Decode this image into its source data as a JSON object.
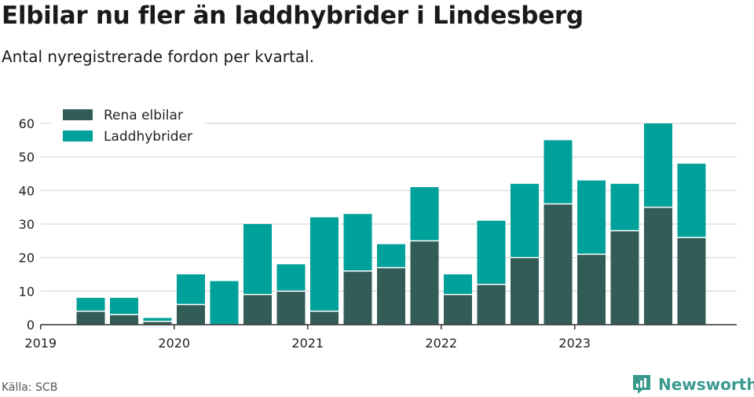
{
  "header": {
    "title": "Elbilar nu fler än laddhybrider i Lindesberg",
    "subtitle": "Antal nyregistrerade fordon per kvartal."
  },
  "footer": {
    "source": "Källa: SCB",
    "brand": "Newsworthy"
  },
  "colors": {
    "elbilar": "#335c56",
    "laddhybrider": "#00a19a",
    "grid": "#dddddd",
    "axis": "#333333",
    "brand": "#3a9a8e"
  },
  "chart_data": {
    "type": "bar",
    "stacked": true,
    "title": "Elbilar nu fler än laddhybrider i Lindesberg",
    "subtitle": "Antal nyregistrerade fordon per kvartal.",
    "xlabel": "",
    "ylabel": "",
    "ylim": [
      0,
      60
    ],
    "yticks": [
      0,
      10,
      20,
      30,
      40,
      50,
      60
    ],
    "grid": true,
    "legend_position": "top-left",
    "categories": [
      "2019 Q1",
      "2019 Q2",
      "2019 Q3",
      "2019 Q4",
      "2020 Q1",
      "2020 Q2",
      "2020 Q3",
      "2020 Q4",
      "2021 Q1",
      "2021 Q2",
      "2021 Q3",
      "2021 Q4",
      "2022 Q1",
      "2022 Q2",
      "2022 Q3",
      "2022 Q4",
      "2023 Q1",
      "2023 Q2",
      "2023 Q3",
      "2023 Q4"
    ],
    "x_tick_labels": [
      {
        "label": "2019",
        "category_index": 0
      },
      {
        "label": "2020",
        "category_index": 4
      },
      {
        "label": "2021",
        "category_index": 8
      },
      {
        "label": "2022",
        "category_index": 12
      },
      {
        "label": "2023",
        "category_index": 16
      }
    ],
    "series": [
      {
        "name": "Rena elbilar",
        "color": "#335c56",
        "values": [
          0,
          4,
          3,
          1,
          6,
          0,
          9,
          10,
          4,
          16,
          17,
          25,
          9,
          12,
          20,
          36,
          21,
          28,
          35,
          26
        ]
      },
      {
        "name": "Laddhybrider",
        "color": "#00a19a",
        "values": [
          0,
          4,
          5,
          1,
          9,
          13,
          21,
          8,
          28,
          17,
          7,
          16,
          6,
          19,
          22,
          19,
          22,
          14,
          25,
          22
        ]
      }
    ]
  }
}
